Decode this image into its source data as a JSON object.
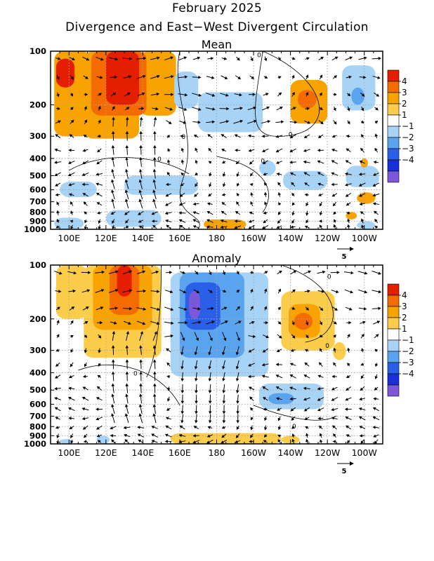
{
  "header": {
    "title": "February 2025",
    "subtitle": "Divergence and East−West Divergent Circulation"
  },
  "panels": [
    {
      "id": "mean",
      "title": "Mean"
    },
    {
      "id": "anomaly",
      "title": "Anomaly"
    }
  ],
  "chart_data": {
    "type": "heatmap",
    "x_ticks": [
      "100E",
      "120E",
      "140E",
      "160E",
      "180",
      "160W",
      "140W",
      "120W",
      "100W"
    ],
    "x_tick_lon": [
      100,
      120,
      140,
      160,
      180,
      200,
      220,
      240,
      260
    ],
    "xlim": [
      90,
      270
    ],
    "y_ticks": [
      "100",
      "200",
      "300",
      "400",
      "500",
      "600",
      "700",
      "800",
      "900",
      "1000"
    ],
    "y_tick_values": [
      100,
      200,
      300,
      400,
      500,
      600,
      700,
      800,
      900,
      1000
    ],
    "ylim": [
      100,
      1000
    ],
    "y_scale": "log",
    "legend": {
      "placement": "right",
      "labels": [
        "4",
        "3",
        "2",
        "1",
        "−1",
        "−2",
        "−3",
        "−4"
      ],
      "colors": [
        "#e61e00",
        "#f46c00",
        "#f8a300",
        "#fbcd4a",
        "#ffffff",
        "#a7d3f6",
        "#5aa4ef",
        "#2a5fe8",
        "#1b2fd8",
        "#7b58d8"
      ]
    },
    "vector_reference": "5",
    "panels": [
      {
        "name": "Mean",
        "regions": [
          {
            "lon": [
              92,
              112
            ],
            "p": [
              100,
              300
            ],
            "level": 2
          },
          {
            "lon": [
              108,
              138
            ],
            "p": [
              100,
              310
            ],
            "level": 2
          },
          {
            "lon": [
              138,
              158
            ],
            "p": [
              100,
              230
            ],
            "level": 2
          },
          {
            "lon": [
              112,
              142
            ],
            "p": [
              100,
              230
            ],
            "level": 3
          },
          {
            "lon": [
              120,
              138
            ],
            "p": [
              100,
              200
            ],
            "level": 4
          },
          {
            "lon": [
              93,
              103
            ],
            "p": [
              110,
              160
            ],
            "level": 4
          },
          {
            "lon": [
              220,
              240
            ],
            "p": [
              145,
              255
            ],
            "level": 2
          },
          {
            "lon": [
              224,
              234
            ],
            "p": [
              165,
              210
            ],
            "level": 3
          },
          {
            "lon": [
              170,
              205
            ],
            "p": [
              170,
              285
            ],
            "level": -1
          },
          {
            "lon": [
              157,
              170
            ],
            "p": [
              130,
              210
            ],
            "level": -1
          },
          {
            "lon": [
              248,
              266
            ],
            "p": [
              120,
              215
            ],
            "level": -1
          },
          {
            "lon": [
              253,
              260
            ],
            "p": [
              160,
              200
            ],
            "level": -2
          },
          {
            "lon": [
              130,
              170
            ],
            "p": [
              500,
              640
            ],
            "level": -1
          },
          {
            "lon": [
              95,
              115
            ],
            "p": [
              540,
              660
            ],
            "level": -1
          },
          {
            "lon": [
              120,
              150
            ],
            "p": [
              780,
              970
            ],
            "level": -1
          },
          {
            "lon": [
              92,
              108
            ],
            "p": [
              860,
              1000
            ],
            "level": -1
          },
          {
            "lon": [
              203,
              212
            ],
            "p": [
              410,
              500
            ],
            "level": -1
          },
          {
            "lon": [
              216,
              240
            ],
            "p": [
              470,
              600
            ],
            "level": -1
          },
          {
            "lon": [
              250,
              268
            ],
            "p": [
              440,
              580
            ],
            "level": -1
          },
          {
            "lon": [
              173,
              196
            ],
            "p": [
              880,
              1000
            ],
            "level": 2
          },
          {
            "lon": [
              256,
              266
            ],
            "p": [
              620,
              720
            ],
            "level": 2
          },
          {
            "lon": [
              250,
              256
            ],
            "p": [
              800,
              880
            ],
            "level": 2
          },
          {
            "lon": [
              258,
              262
            ],
            "p": [
              400,
              450
            ],
            "level": 2
          },
          {
            "lon": [
              256,
              266
            ],
            "p": [
              900,
              1000
            ],
            "level": -1
          }
        ]
      },
      {
        "name": "Anomaly",
        "regions": [
          {
            "lon": [
              93,
              110
            ],
            "p": [
              100,
              200
            ],
            "level": 1
          },
          {
            "lon": [
              108,
              150
            ],
            "p": [
              100,
              330
            ],
            "level": 1
          },
          {
            "lon": [
              113,
              145
            ],
            "p": [
              100,
              230
            ],
            "level": 2
          },
          {
            "lon": [
              122,
              138
            ],
            "p": [
              100,
              190
            ],
            "level": 3
          },
          {
            "lon": [
              126,
              134
            ],
            "p": [
              100,
              150
            ],
            "level": 4
          },
          {
            "lon": [
              215,
              244
            ],
            "p": [
              140,
              300
            ],
            "level": 1
          },
          {
            "lon": [
              219,
              236
            ],
            "p": [
              165,
              255
            ],
            "level": 2
          },
          {
            "lon": [
              222,
              232
            ],
            "p": [
              185,
              230
            ],
            "level": 3
          },
          {
            "lon": [
              243,
              250
            ],
            "p": [
              270,
              340
            ],
            "level": 1
          },
          {
            "lon": [
              155,
              208
            ],
            "p": [
              110,
              420
            ],
            "level": -1
          },
          {
            "lon": [
              160,
              195
            ],
            "p": [
              110,
              330
            ],
            "level": -2
          },
          {
            "lon": [
              163,
              182
            ],
            "p": [
              125,
              230
            ],
            "level": -3
          },
          {
            "lon": [
              165,
              171
            ],
            "p": [
              140,
              200
            ],
            "level": -4
          },
          {
            "lon": [
              203,
              238
            ],
            "p": [
              460,
              640
            ],
            "level": -1
          },
          {
            "lon": [
              208,
              222
            ],
            "p": [
              520,
              600
            ],
            "level": -2
          },
          {
            "lon": [
              155,
              215
            ],
            "p": [
              870,
              1000
            ],
            "level": 1
          },
          {
            "lon": [
              215,
              225
            ],
            "p": [
              900,
              1000
            ],
            "level": 1
          },
          {
            "lon": [
              115,
              122
            ],
            "p": [
              900,
              1000
            ],
            "level": -1
          },
          {
            "lon": [
              95,
              102
            ],
            "p": [
              940,
              1000
            ],
            "level": -1
          }
        ]
      }
    ],
    "contour_labels": [
      {
        "panel": "Mean",
        "text": "0",
        "lon": 203,
        "p": 104
      },
      {
        "panel": "Mean",
        "text": "0",
        "lon": 220,
        "p": 290
      },
      {
        "panel": "Mean",
        "text": "0",
        "lon": 162,
        "p": 300
      },
      {
        "panel": "Mean",
        "text": "0",
        "lon": 149,
        "p": 400
      },
      {
        "panel": "Mean",
        "text": "0",
        "lon": 205,
        "p": 410
      },
      {
        "panel": "Anomaly",
        "text": "0",
        "lon": 241,
        "p": 115
      },
      {
        "panel": "Anomaly",
        "text": "0",
        "lon": 240,
        "p": 280
      },
      {
        "panel": "Anomaly",
        "text": "0",
        "lon": 136,
        "p": 400
      },
      {
        "panel": "Anomaly",
        "text": "0",
        "lon": 222,
        "p": 790
      }
    ]
  }
}
